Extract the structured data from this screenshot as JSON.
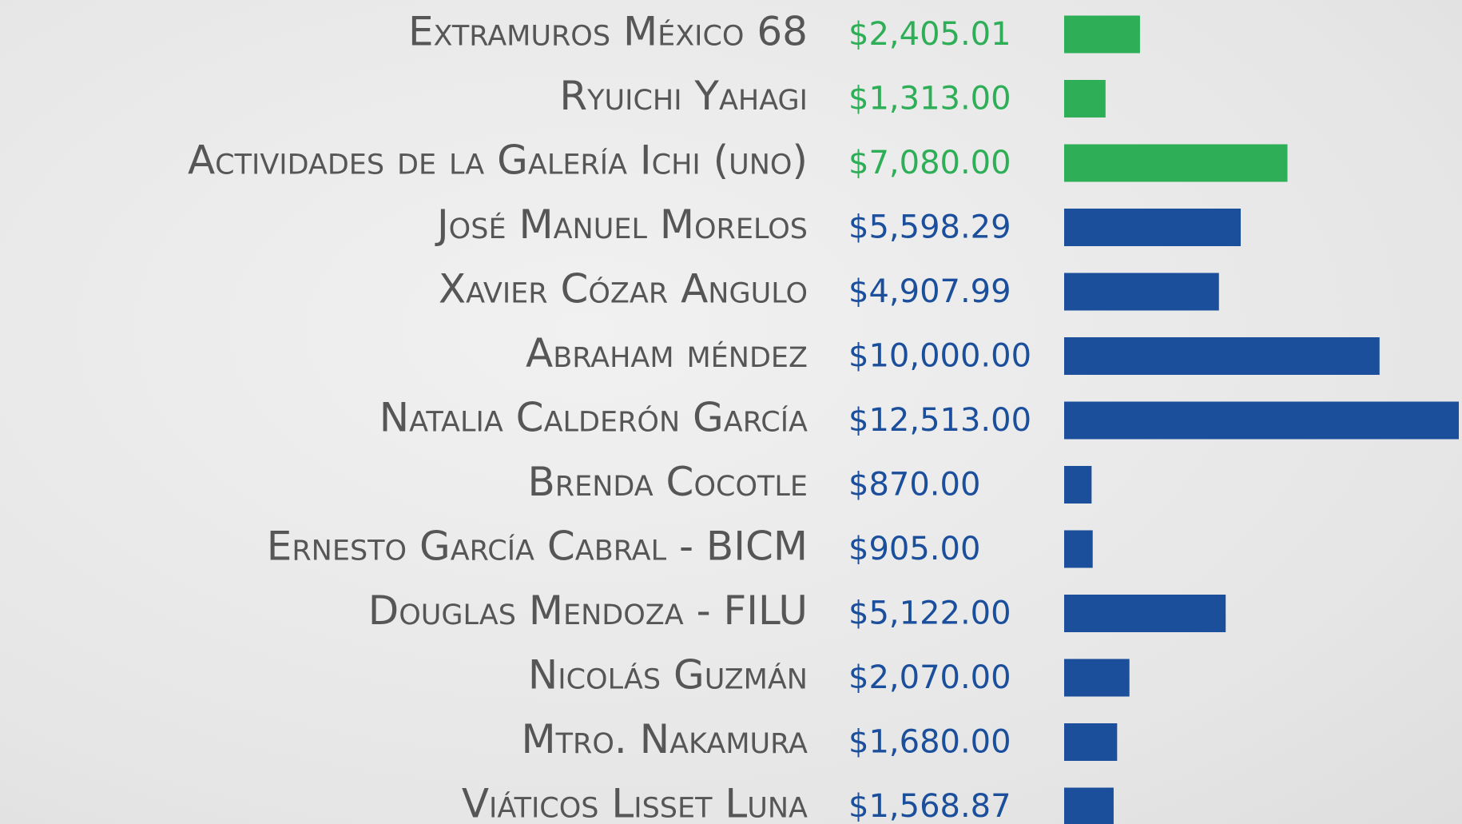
{
  "chart_data": {
    "type": "bar",
    "orientation": "horizontal",
    "categories": [
      "Extramuros México 68",
      "Ryuichi Yahagi",
      "Actividades de la Galería Ichi (uno)",
      "José Manuel Morelos",
      "Xavier Cózar Angulo",
      "Abraham méndez",
      "Natalia Calderón García",
      "Brenda Cocotle",
      "Ernesto García Cabral - BICM",
      "Douglas Mendoza - FILU",
      "Nicolás Guzmán",
      "Mtro. Nakamura",
      "Viáticos Lisset Luna"
    ],
    "values": [
      2405.01,
      1313,
      7080,
      5598.29,
      4907.99,
      10000,
      12513,
      870,
      905,
      5122,
      2070,
      1680,
      1568.87
    ],
    "value_labels": [
      "$2,405.01",
      "$1,313.00",
      "$7,080.00",
      "$5,598.29",
      "$4,907.99",
      "$10,000.00",
      "$12,513.00",
      "$870.00",
      "$905.00",
      "$5,122.00",
      "$2,070.00",
      "$1,680.00",
      "$1,568.87"
    ],
    "colors": [
      "#2eae56",
      "#2eae56",
      "#2eae56",
      "#1b4f9c",
      "#1b4f9c",
      "#1b4f9c",
      "#1b4f9c",
      "#1b4f9c",
      "#1b4f9c",
      "#1b4f9c",
      "#1b4f9c",
      "#1b4f9c",
      "#1b4f9c"
    ]
  }
}
